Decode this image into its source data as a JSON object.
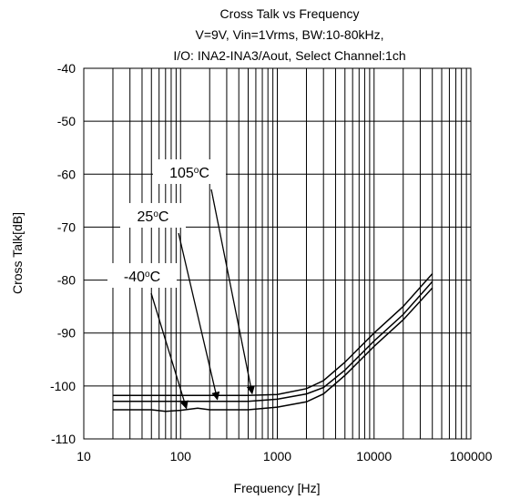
{
  "chart_data": {
    "type": "line",
    "title_lines": [
      "Cross Talk vs Frequency",
      "V=9V, Vin=1Vrms, BW:10-80kHz,",
      "I/O: INA2-INA3/Aout, Select Channel:1ch"
    ],
    "xlabel": "Frequency [Hz]",
    "ylabel": "Cross Talk[dB]",
    "x_scale": "log",
    "xlim": [
      10,
      100000
    ],
    "ylim": [
      -110,
      -40
    ],
    "x_ticks": [
      "10",
      "100",
      "1000",
      "10000",
      "100000"
    ],
    "y_ticks": [
      "-40",
      "-50",
      "-60",
      "-70",
      "-80",
      "-90",
      "-100",
      "-110"
    ],
    "grid": true,
    "series": [
      {
        "name": "105°C",
        "x": [
          20,
          50,
          100,
          200,
          500,
          1000,
          2000,
          3000,
          5000,
          10000,
          20000,
          40000
        ],
        "y": [
          -101.8,
          -101.8,
          -101.8,
          -101.8,
          -101.8,
          -101.6,
          -100.5,
          -99.0,
          -95.5,
          -90.0,
          -85.0,
          -78.8
        ]
      },
      {
        "name": "25°C",
        "x": [
          20,
          50,
          100,
          200,
          500,
          1000,
          2000,
          3000,
          5000,
          10000,
          20000,
          40000
        ],
        "y": [
          -102.9,
          -102.9,
          -102.9,
          -102.9,
          -102.9,
          -102.5,
          -101.5,
          -100.3,
          -97.0,
          -91.5,
          -86.5,
          -80.3
        ]
      },
      {
        "name": "-40°C",
        "x": [
          20,
          50,
          70,
          100,
          150,
          200,
          500,
          1000,
          2000,
          3000,
          5000,
          10000,
          20000,
          40000
        ],
        "y": [
          -104.5,
          -104.5,
          -104.8,
          -104.6,
          -104.2,
          -104.5,
          -104.5,
          -104.0,
          -103.0,
          -101.5,
          -98.0,
          -92.5,
          -87.5,
          -81.5
        ]
      }
    ],
    "annotations": [
      {
        "series": 0,
        "label_main": "105",
        "label_sup": "o",
        "label_end": "C",
        "arrow_to_x": 550,
        "arrow_to_y": -101.8
      },
      {
        "series": 1,
        "label_main": "25",
        "label_sup": "o",
        "label_end": "C",
        "arrow_to_x": 240,
        "arrow_to_y": -102.9
      },
      {
        "series": 2,
        "label_main": "-40",
        "label_sup": "o",
        "label_end": "C",
        "arrow_to_x": 115,
        "arrow_to_y": -104.6
      }
    ]
  }
}
